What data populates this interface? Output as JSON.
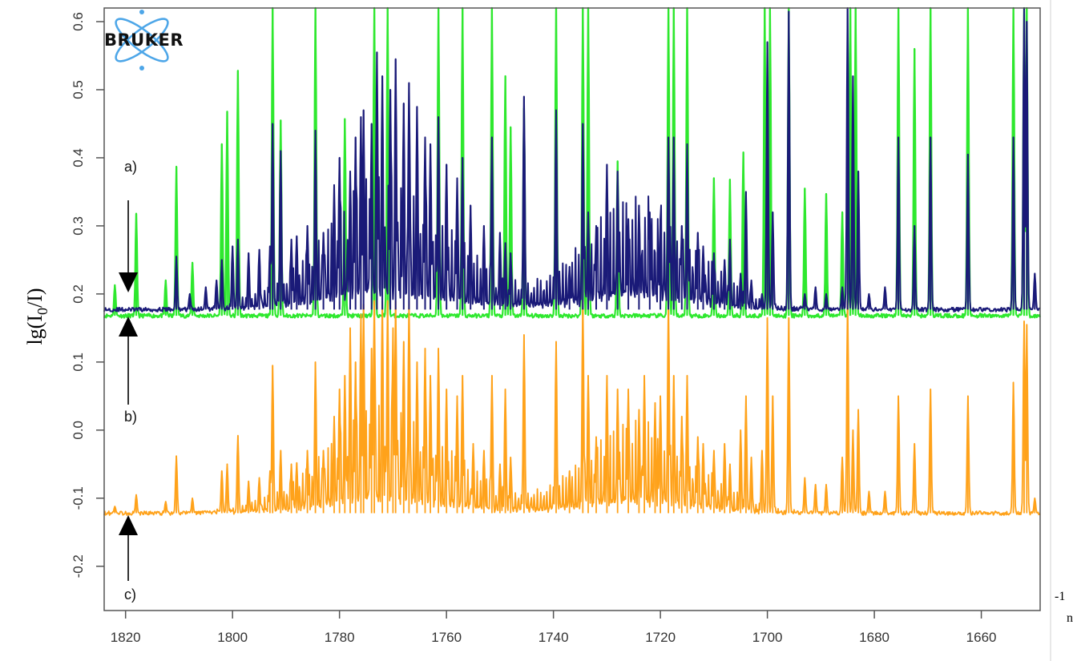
{
  "logo": {
    "text": "BRUKER"
  },
  "colors": {
    "a": "#2ee82e",
    "b": "#1a1a78",
    "c": "#ffa21a",
    "frame": "#555555",
    "arrow": "#000000"
  },
  "chart_data": {
    "type": "line",
    "title": "",
    "ylabel_main": "lg(I",
    "ylabel_sub": "0",
    "ylabel_tail": "/I)",
    "xlabel_fragment_sup": "-1",
    "xlabel_fragment": "n",
    "x_reversed": true,
    "xlim": [
      1824,
      1649
    ],
    "ylim": [
      -0.265,
      0.62
    ],
    "xticks": [
      1820,
      1800,
      1780,
      1760,
      1740,
      1720,
      1700,
      1680,
      1660
    ],
    "xtick_labels": [
      "1820",
      "1800",
      "1780",
      "1760",
      "1740",
      "1720",
      "1700",
      "1680",
      "1660"
    ],
    "yticks": [
      -0.2,
      -0.1,
      0.0,
      0.1,
      0.2,
      0.3,
      0.4,
      0.5,
      0.6
    ],
    "ytick_labels": [
      "-0.2",
      "-0.1",
      "0.0",
      "0.1",
      "0.2",
      "0.3",
      "0.4",
      "0.5",
      "0.6"
    ],
    "annotations": [
      {
        "label": "a)",
        "arrow_x": 1819.5,
        "arrow_direction": "down"
      },
      {
        "label": "b)",
        "arrow_x": 1819.5,
        "arrow_direction": "up"
      },
      {
        "label": "c)",
        "arrow_x": 1819.5,
        "arrow_direction": "up"
      }
    ],
    "series": [
      {
        "key": "a",
        "baseline": 0.168,
        "line_width": 2.2,
        "broad_amp": 0.0,
        "peaks": [
          [
            1822,
            0.213
          ],
          [
            1818,
            0.318
          ],
          [
            1812.5,
            0.22
          ],
          [
            1810.5,
            0.387
          ],
          [
            1807.5,
            0.246
          ],
          [
            1802,
            0.42
          ],
          [
            1801,
            0.468
          ],
          [
            1799,
            0.528
          ],
          [
            1792.5,
            0.62
          ],
          [
            1791,
            0.455
          ],
          [
            1784.5,
            0.62
          ],
          [
            1779,
            0.457
          ],
          [
            1773.5,
            0.62
          ],
          [
            1771,
            0.62
          ],
          [
            1761.5,
            0.62
          ],
          [
            1757,
            0.62
          ],
          [
            1751.5,
            0.62
          ],
          [
            1749,
            0.52
          ],
          [
            1748,
            0.445
          ],
          [
            1745.5,
            0.473
          ],
          [
            1739.5,
            0.62
          ],
          [
            1734.5,
            0.62
          ],
          [
            1733.5,
            0.62
          ],
          [
            1728,
            0.395
          ],
          [
            1718.5,
            0.62
          ],
          [
            1717.5,
            0.62
          ],
          [
            1715,
            0.62
          ],
          [
            1710,
            0.37
          ],
          [
            1707,
            0.368
          ],
          [
            1704.5,
            0.408
          ],
          [
            1700.5,
            0.62
          ],
          [
            1699.5,
            0.62
          ],
          [
            1696,
            0.62
          ],
          [
            1693,
            0.355
          ],
          [
            1689,
            0.347
          ],
          [
            1686,
            0.32
          ],
          [
            1684.5,
            0.62
          ],
          [
            1683.5,
            0.62
          ],
          [
            1675.5,
            0.62
          ],
          [
            1672.5,
            0.56
          ],
          [
            1669.5,
            0.62
          ],
          [
            1662.5,
            0.62
          ],
          [
            1654,
            0.62
          ],
          [
            1652,
            0.62
          ],
          [
            1651.5,
            0.62
          ]
        ]
      },
      {
        "key": "b",
        "baseline": 0.177,
        "line_width": 2.0,
        "broad_amp": 0.075,
        "peaks": [
          [
            1810.5,
            0.255
          ],
          [
            1808,
            0.2
          ],
          [
            1805,
            0.21
          ],
          [
            1803,
            0.22
          ],
          [
            1802,
            0.25
          ],
          [
            1800,
            0.27
          ],
          [
            1799,
            0.28
          ],
          [
            1797,
            0.26
          ],
          [
            1795,
            0.265
          ],
          [
            1793,
            0.27
          ],
          [
            1792.5,
            0.45
          ],
          [
            1791,
            0.41
          ],
          [
            1789,
            0.28
          ],
          [
            1788,
            0.285
          ],
          [
            1786,
            0.3
          ],
          [
            1784.5,
            0.44
          ],
          [
            1783,
            0.29
          ],
          [
            1781,
            0.36
          ],
          [
            1780,
            0.4
          ],
          [
            1778,
            0.38
          ],
          [
            1777,
            0.43
          ],
          [
            1776,
            0.46
          ],
          [
            1775.5,
            0.47
          ],
          [
            1774,
            0.45
          ],
          [
            1773,
            0.555
          ],
          [
            1772,
            0.52
          ],
          [
            1770.5,
            0.5
          ],
          [
            1769.5,
            0.545
          ],
          [
            1768,
            0.48
          ],
          [
            1767,
            0.51
          ],
          [
            1765.5,
            0.475
          ],
          [
            1764,
            0.43
          ],
          [
            1763,
            0.42
          ],
          [
            1761.5,
            0.46
          ],
          [
            1760,
            0.39
          ],
          [
            1758,
            0.37
          ],
          [
            1757,
            0.4
          ],
          [
            1755.5,
            0.33
          ],
          [
            1753,
            0.3
          ],
          [
            1751.5,
            0.43
          ],
          [
            1750,
            0.29
          ],
          [
            1749,
            0.275
          ],
          [
            1748,
            0.26
          ],
          [
            1745.5,
            0.49
          ],
          [
            1739.5,
            0.47
          ],
          [
            1737,
            0.24
          ],
          [
            1734.5,
            0.45
          ],
          [
            1733.5,
            0.32
          ],
          [
            1732,
            0.3
          ],
          [
            1730,
            0.39
          ],
          [
            1728,
            0.38
          ],
          [
            1726,
            0.31
          ],
          [
            1724,
            0.33
          ],
          [
            1722,
            0.32
          ],
          [
            1720,
            0.31
          ],
          [
            1718.5,
            0.43
          ],
          [
            1717.5,
            0.43
          ],
          [
            1716,
            0.3
          ],
          [
            1715,
            0.42
          ],
          [
            1713,
            0.29
          ],
          [
            1712,
            0.27
          ],
          [
            1710,
            0.26
          ],
          [
            1708,
            0.25
          ],
          [
            1707,
            0.28
          ],
          [
            1705,
            0.23
          ],
          [
            1704,
            0.35
          ],
          [
            1703,
            0.22
          ],
          [
            1701,
            0.2
          ],
          [
            1700,
            0.57
          ],
          [
            1699,
            0.32
          ],
          [
            1696,
            0.615
          ],
          [
            1693,
            0.2
          ],
          [
            1691,
            0.21
          ],
          [
            1689,
            0.2
          ],
          [
            1686,
            0.21
          ],
          [
            1685,
            0.62
          ],
          [
            1684,
            0.52
          ],
          [
            1683,
            0.38
          ],
          [
            1681,
            0.2
          ],
          [
            1678,
            0.21
          ],
          [
            1675.5,
            0.43
          ],
          [
            1672.5,
            0.3
          ],
          [
            1669.5,
            0.43
          ],
          [
            1662.5,
            0.405
          ],
          [
            1654,
            0.43
          ],
          [
            1652,
            0.62
          ],
          [
            1651.5,
            0.6
          ],
          [
            1650,
            0.23
          ]
        ]
      },
      {
        "key": "c",
        "baseline": -0.122,
        "line_width": 1.8,
        "broad_amp": 0.06,
        "peaks": [
          [
            1822,
            -0.112
          ],
          [
            1818,
            -0.095
          ],
          [
            1812.5,
            -0.105
          ],
          [
            1810.5,
            -0.038
          ],
          [
            1807.5,
            -0.1
          ],
          [
            1802,
            -0.06
          ],
          [
            1801,
            -0.05
          ],
          [
            1799,
            -0.008
          ],
          [
            1797,
            -0.075
          ],
          [
            1795,
            -0.07
          ],
          [
            1793,
            -0.06
          ],
          [
            1792.5,
            0.095
          ],
          [
            1791,
            -0.03
          ],
          [
            1789,
            -0.05
          ],
          [
            1788,
            -0.048
          ],
          [
            1786,
            -0.03
          ],
          [
            1784.5,
            0.1
          ],
          [
            1783,
            -0.03
          ],
          [
            1781,
            0.02
          ],
          [
            1780,
            0.06
          ],
          [
            1779,
            0.08
          ],
          [
            1778,
            0.15
          ],
          [
            1777,
            0.1
          ],
          [
            1776,
            0.17
          ],
          [
            1775.5,
            0.185
          ],
          [
            1774,
            0.12
          ],
          [
            1773.5,
            0.19
          ],
          [
            1772,
            0.19
          ],
          [
            1771,
            0.19
          ],
          [
            1770,
            0.15
          ],
          [
            1769.5,
            0.19
          ],
          [
            1768,
            0.13
          ],
          [
            1767,
            0.19
          ],
          [
            1765.5,
            0.1
          ],
          [
            1764,
            0.12
          ],
          [
            1763,
            0.08
          ],
          [
            1761.5,
            0.12
          ],
          [
            1760,
            0.06
          ],
          [
            1758,
            0.05
          ],
          [
            1757,
            0.08
          ],
          [
            1755,
            -0.02
          ],
          [
            1753,
            -0.03
          ],
          [
            1751.5,
            0.08
          ],
          [
            1750,
            -0.05
          ],
          [
            1749,
            0.06
          ],
          [
            1748,
            -0.04
          ],
          [
            1745.5,
            0.14
          ],
          [
            1739.5,
            0.13
          ],
          [
            1737,
            -0.06
          ],
          [
            1734.5,
            0.19
          ],
          [
            1733.5,
            0.08
          ],
          [
            1732,
            -0.01
          ],
          [
            1730,
            0.08
          ],
          [
            1728,
            0.06
          ],
          [
            1726,
            0.06
          ],
          [
            1724,
            0.03
          ],
          [
            1723,
            0.08
          ],
          [
            1721,
            0.04
          ],
          [
            1720,
            0.05
          ],
          [
            1718.5,
            0.19
          ],
          [
            1717.5,
            0.08
          ],
          [
            1716,
            0.02
          ],
          [
            1715,
            0.08
          ],
          [
            1713,
            -0.01
          ],
          [
            1712,
            -0.02
          ],
          [
            1710,
            -0.03
          ],
          [
            1708,
            -0.02
          ],
          [
            1707,
            -0.05
          ],
          [
            1705,
            0.0
          ],
          [
            1704,
            0.05
          ],
          [
            1703,
            -0.04
          ],
          [
            1701,
            -0.03
          ],
          [
            1700,
            0.165
          ],
          [
            1699,
            0.05
          ],
          [
            1696,
            0.165
          ],
          [
            1693,
            -0.07
          ],
          [
            1691,
            -0.08
          ],
          [
            1689,
            -0.08
          ],
          [
            1686,
            -0.04
          ],
          [
            1685,
            0.19
          ],
          [
            1684,
            0.0
          ],
          [
            1683,
            0.03
          ],
          [
            1681,
            -0.09
          ],
          [
            1678,
            -0.09
          ],
          [
            1675.5,
            0.05
          ],
          [
            1672.5,
            -0.02
          ],
          [
            1669.5,
            0.06
          ],
          [
            1662.5,
            0.05
          ],
          [
            1654,
            0.07
          ],
          [
            1652,
            0.16
          ],
          [
            1651.5,
            0.155
          ],
          [
            1650,
            -0.1
          ]
        ]
      }
    ]
  }
}
